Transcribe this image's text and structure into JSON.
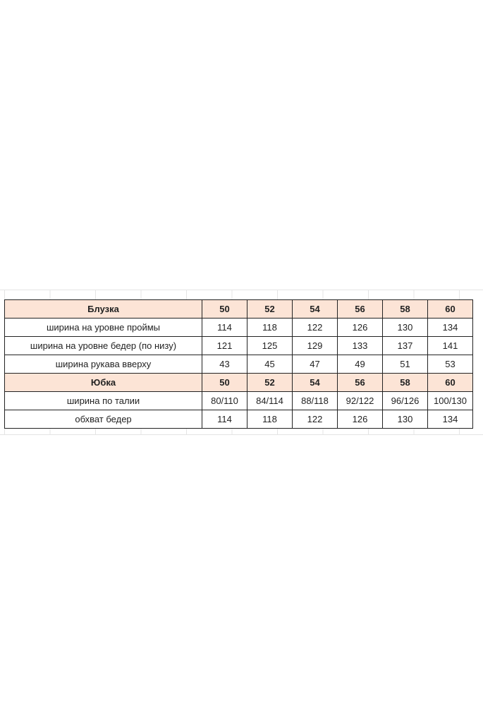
{
  "sections": [
    {
      "title": "Блузка",
      "sizes": [
        "50",
        "52",
        "54",
        "56",
        "58",
        "60"
      ],
      "rows": [
        {
          "label": "ширина на уровне проймы",
          "values": [
            "114",
            "118",
            "122",
            "126",
            "130",
            "134"
          ]
        },
        {
          "label": "ширина на уровне бедер (по низу)",
          "values": [
            "121",
            "125",
            "129",
            "133",
            "137",
            "141"
          ]
        },
        {
          "label": "ширина рукава вверху",
          "values": [
            "43",
            "45",
            "47",
            "49",
            "51",
            "53"
          ]
        }
      ]
    },
    {
      "title": "Юбка",
      "sizes": [
        "50",
        "52",
        "54",
        "56",
        "58",
        "60"
      ],
      "rows": [
        {
          "label": "ширина по талии",
          "values": [
            "80/110",
            "84/114",
            "88/118",
            "92/122",
            "96/126",
            "100/130"
          ]
        },
        {
          "label": "обхват бедер",
          "values": [
            "114",
            "118",
            "122",
            "126",
            "130",
            "134"
          ]
        }
      ]
    }
  ],
  "colors": {
    "header_fill": "#fce4d6",
    "border": "#222222"
  }
}
